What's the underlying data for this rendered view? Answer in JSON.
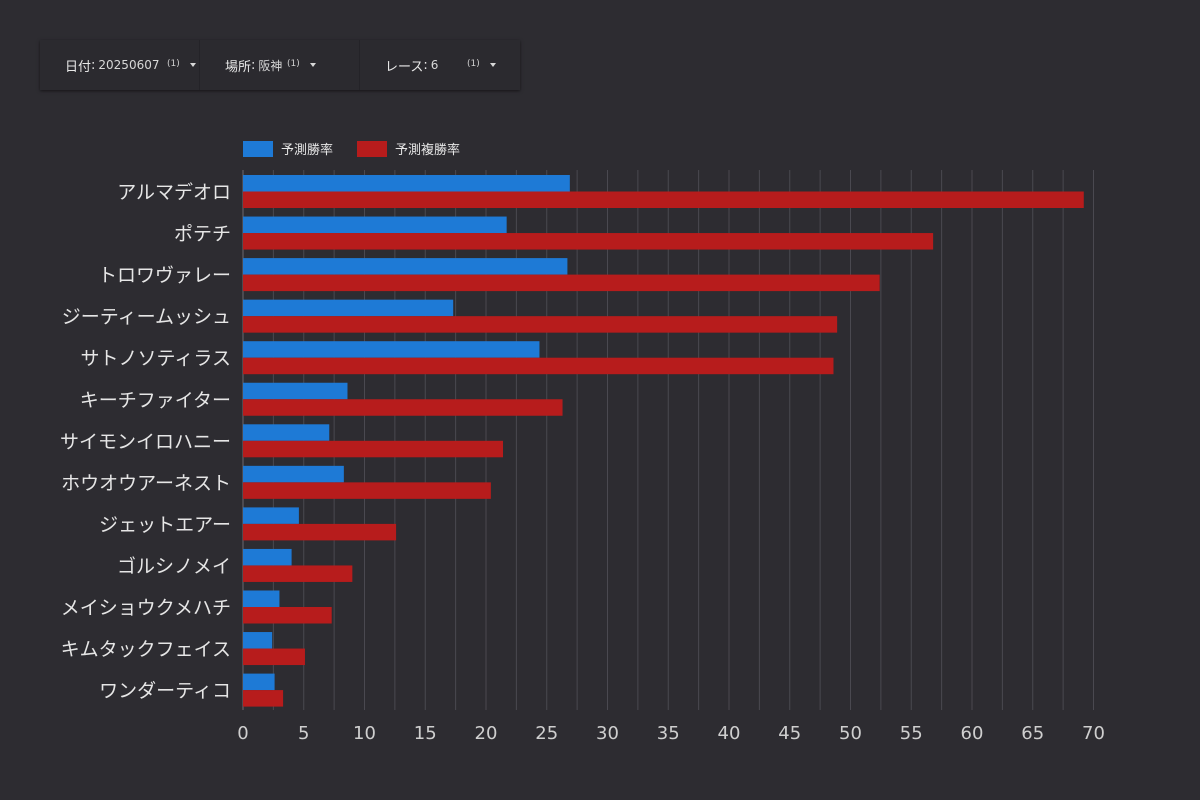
{
  "filters": [
    {
      "label": "日付",
      "value": "20250607",
      "count": "(1)"
    },
    {
      "label": "場所",
      "value": "阪神",
      "count": "(1)"
    },
    {
      "label": "レース",
      "value": "6",
      "count": "(1)"
    }
  ],
  "filter_separator": ":",
  "icons": {
    "dropdown": "caret-down-icon"
  },
  "colors": {
    "background": "#2d2c31",
    "series1": "#1e7ad6",
    "series2": "#b71c1c",
    "gridline": "#4a4950",
    "text": "#e6e6e6"
  },
  "chart_data": {
    "type": "bar",
    "orientation": "horizontal",
    "categories": [
      "アルマデオロ",
      "ポテチ",
      "トロワヴァレー",
      "ジーティームッシュ",
      "サトノソティラス",
      "キーチファイター",
      "サイモンイロハニー",
      "ホウオウアーネスト",
      "ジェットエアー",
      "ゴルシノメイ",
      "メイショウクメハチ",
      "キムタックフェイス",
      "ワンダーティコ"
    ],
    "series": [
      {
        "name": "予測勝率",
        "values": [
          26.9,
          21.7,
          26.7,
          17.3,
          24.4,
          8.6,
          7.1,
          8.3,
          4.6,
          4.0,
          3.0,
          2.4,
          2.6
        ]
      },
      {
        "name": "予測複勝率",
        "values": [
          69.2,
          56.8,
          52.4,
          48.9,
          48.6,
          26.3,
          21.4,
          20.4,
          12.6,
          9.0,
          7.3,
          5.1,
          3.3
        ]
      }
    ],
    "xlim": [
      0,
      70
    ],
    "xticks": [
      0,
      5,
      10,
      15,
      20,
      25,
      30,
      35,
      40,
      45,
      50,
      55,
      60,
      65,
      70
    ],
    "minor_grid": 2.5,
    "grid": true,
    "legend": "top-left"
  }
}
